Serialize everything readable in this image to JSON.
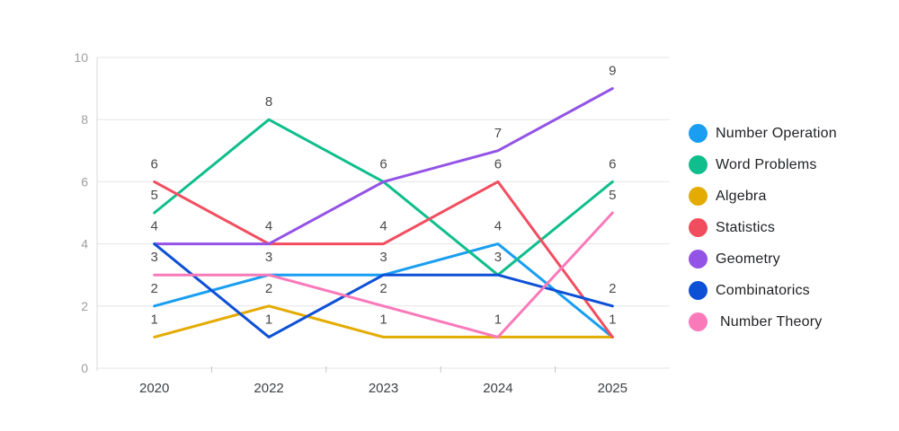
{
  "chart_data": {
    "type": "line",
    "title": "",
    "categories": [
      "2020",
      "2022",
      "2023",
      "2024",
      "2025"
    ],
    "series": [
      {
        "name": "Number Operation",
        "color": "#199ef2",
        "values": [
          2,
          3,
          3,
          4,
          1
        ]
      },
      {
        "name": "Word Problems",
        "color": "#0ebe8c",
        "values": [
          5,
          8,
          6,
          3,
          6
        ]
      },
      {
        "name": "Algebra",
        "color": "#e4ab00",
        "values": [
          1,
          2,
          1,
          1,
          1
        ]
      },
      {
        "name": "Statistics",
        "color": "#f24d5f",
        "values": [
          6,
          4,
          4,
          6,
          1
        ]
      },
      {
        "name": "Geometry",
        "color": "#9353e6",
        "values": [
          4,
          4,
          6,
          7,
          9
        ]
      },
      {
        "name": "Combinatorics",
        "color": "#0d50d6",
        "values": [
          4,
          1,
          3,
          3,
          2
        ]
      },
      {
        "name": "Number Theory",
        "color": "#fa79b9",
        "values": [
          3,
          3,
          2,
          1,
          5
        ]
      }
    ],
    "y_ticks": [
      0,
      2,
      4,
      6,
      8,
      10
    ],
    "ylim": [
      0,
      10
    ],
    "grid": true,
    "point_labels": true,
    "legend_position": "right",
    "style": {
      "grid_color": "#e5e5e5",
      "axis_color": "#d8d8d8",
      "tick_mark_color": "#c4c4c4",
      "y_tick_label_color": "#9e9e9e",
      "x_tick_label_color": "#3c4043",
      "point_label_color": "#4a4a4a"
    }
  }
}
